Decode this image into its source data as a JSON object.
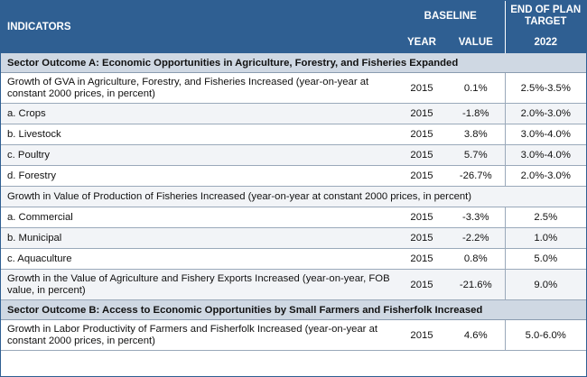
{
  "header": {
    "indicators": "INDICATORS",
    "baseline": "BASELINE",
    "end_of_plan_line1": "END OF PLAN",
    "end_of_plan_line2": "TARGET",
    "year": "YEAR",
    "value": "VALUE",
    "target_year": "2022"
  },
  "rows": [
    {
      "type": "section",
      "text": "Sector Outcome A: Economic  Opportunities in Agriculture, Forestry, and Fisheries Expanded"
    },
    {
      "type": "data",
      "indicator": "Growth of GVA in Agriculture, Forestry, and Fisheries Increased (year-on-year at constant 2000 prices,  in percent)",
      "year": "2015",
      "value": "0.1%",
      "target": "2.5%-3.5%"
    },
    {
      "type": "data",
      "indicator": "a. Crops",
      "year": "2015",
      "value": "-1.8%",
      "target": "2.0%-3.0%"
    },
    {
      "type": "data",
      "indicator": "b. Livestock",
      "year": "2015",
      "value": "3.8%",
      "target": "3.0%-4.0%"
    },
    {
      "type": "data",
      "indicator": "c. Poultry",
      "year": "2015",
      "value": "5.7%",
      "target": "3.0%-4.0%"
    },
    {
      "type": "data",
      "indicator": "d. Forestry",
      "year": "2015",
      "value": "-26.7%",
      "target": "2.0%-3.0%"
    },
    {
      "type": "span",
      "text": "Growth in Value of Production of Fisheries Increased (year-on-year at constant 2000 prices, in percent)"
    },
    {
      "type": "data",
      "indicator": "a. Commercial",
      "year": "2015",
      "value": "-3.3%",
      "target": "2.5%"
    },
    {
      "type": "data",
      "indicator": "b. Municipal",
      "year": "2015",
      "value": "-2.2%",
      "target": "1.0%"
    },
    {
      "type": "data",
      "indicator": "c. Aquaculture",
      "year": "2015",
      "value": "0.8%",
      "target": "5.0%"
    },
    {
      "type": "data",
      "indicator": "Growth in the Value of Agriculture and Fishery Exports Increased (year-on-year, FOB value, in percent)",
      "year": "2015",
      "value": "-21.6%",
      "target": "9.0%"
    },
    {
      "type": "section",
      "text": "Sector Outcome B: Access to Economic  Opportunities by Small Farmers and Fisherfolk Increased"
    },
    {
      "type": "data",
      "indicator": "Growth in Labor Productivity of  Farmers and Fisherfolk Increased (year-on-year at constant 2000 prices, in percent)",
      "year": "2015",
      "value": "4.6%",
      "target": "5.0-6.0%"
    }
  ]
}
